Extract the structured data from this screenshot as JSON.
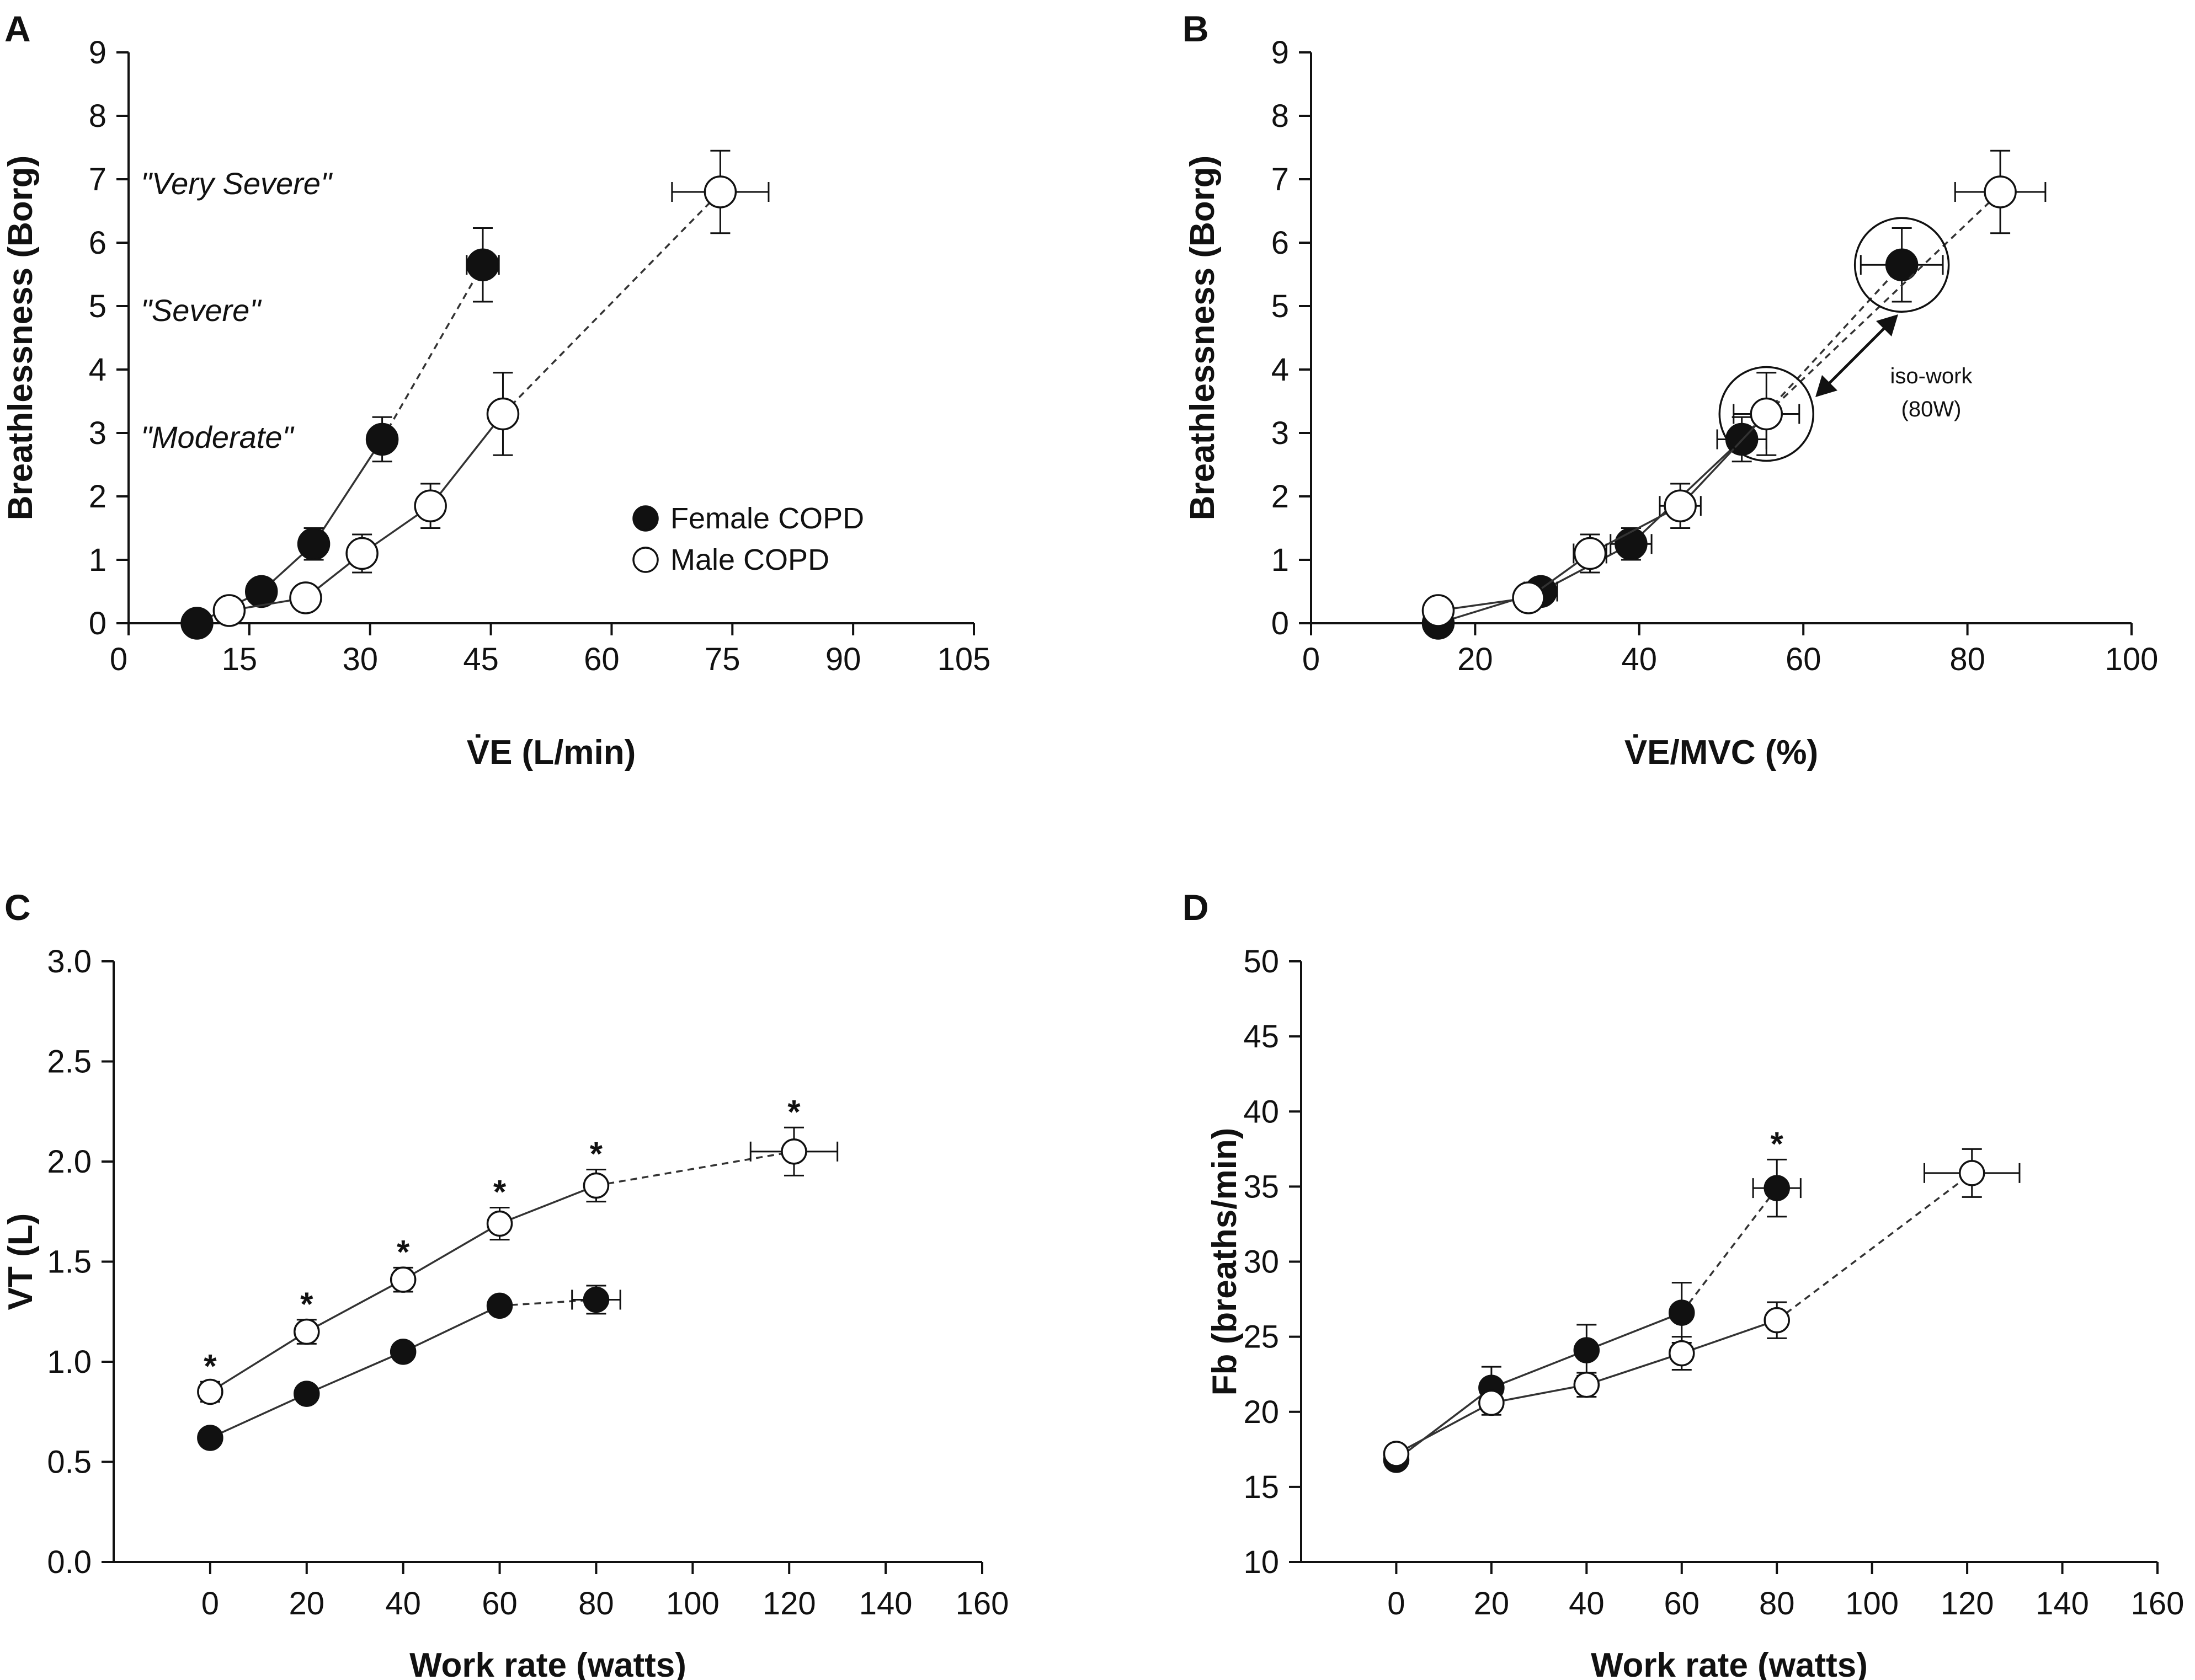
{
  "colors": {
    "ink": "#111111",
    "filled": "#111111",
    "open": "#ffffff",
    "line": "#333333"
  },
  "legend": {
    "female": "Female COPD",
    "male": "Male COPD"
  },
  "chart_data": [
    {
      "id": "A",
      "letter": "A",
      "type": "scatter",
      "xlabel": "V̇E (L/min)",
      "ylabel": "Breathlessness (Borg)",
      "xlim": [
        0,
        105
      ],
      "ylim": [
        0,
        9
      ],
      "xticks": [
        0,
        15,
        30,
        45,
        60,
        75,
        90,
        105
      ],
      "yticks": [
        0,
        1,
        2,
        3,
        4,
        5,
        6,
        7,
        8,
        9
      ],
      "annotations": [
        "\"Very Severe\"",
        "\"Severe\"",
        "\"Moderate\""
      ],
      "series": [
        {
          "name": "Female COPD",
          "marker": "filled",
          "x": [
            8.5,
            16.5,
            23,
            31.5,
            44
          ],
          "y": [
            0,
            0.5,
            1.25,
            2.9,
            5.65
          ],
          "xerr": [
            0,
            0,
            0,
            0,
            2
          ],
          "yerr": [
            0,
            0,
            0.25,
            0.35,
            0.58
          ],
          "dashed_last": true
        },
        {
          "name": "Male COPD",
          "marker": "open",
          "x": [
            12.5,
            22,
            29,
            37.5,
            46.5,
            73.5
          ],
          "y": [
            0.2,
            0.4,
            1.1,
            1.85,
            3.3,
            6.8
          ],
          "xerr": [
            0,
            0,
            0,
            0,
            0,
            6
          ],
          "yerr": [
            0,
            0,
            0.3,
            0.35,
            0.65,
            0.65
          ],
          "dashed_last": true
        }
      ]
    },
    {
      "id": "B",
      "letter": "B",
      "type": "scatter",
      "xlabel": "V̇E/MVC (%)",
      "ylabel": "Breathlessness (Borg)",
      "xlim": [
        0,
        100
      ],
      "ylim": [
        0,
        9
      ],
      "xticks": [
        0,
        20,
        40,
        60,
        80,
        100
      ],
      "yticks": [
        0,
        1,
        2,
        3,
        4,
        5,
        6,
        7,
        8,
        9
      ],
      "annotation_lines": [
        "iso-work",
        "(80W)"
      ],
      "series": [
        {
          "name": "Female COPD",
          "marker": "filled",
          "x": [
            15.5,
            28,
            39,
            52.5,
            72
          ],
          "y": [
            0,
            0.5,
            1.25,
            2.9,
            5.65
          ],
          "xerr": [
            0,
            2,
            2.5,
            3,
            5
          ],
          "yerr": [
            0,
            0,
            0.25,
            0.35,
            0.58
          ],
          "dashed_last": true
        },
        {
          "name": "Male COPD",
          "marker": "open",
          "x": [
            15.5,
            26.5,
            34,
            45,
            55.5,
            84
          ],
          "y": [
            0.2,
            0.4,
            1.1,
            1.85,
            3.3,
            6.8
          ],
          "xerr": [
            0,
            0,
            2,
            2.5,
            4,
            5.5
          ],
          "yerr": [
            0,
            0,
            0.3,
            0.35,
            0.65,
            0.65
          ],
          "dashed_last": true
        }
      ]
    },
    {
      "id": "C",
      "letter": "C",
      "type": "scatter",
      "xlabel": "Work rate (watts)",
      "ylabel": "VT (L)",
      "xlim": [
        -20,
        160
      ],
      "ylim": [
        0,
        3
      ],
      "xticks": [
        0,
        20,
        40,
        60,
        80,
        100,
        120,
        140,
        160
      ],
      "yticks": [
        0.0,
        0.5,
        1.0,
        1.5,
        2.0,
        2.5,
        3.0
      ],
      "ytick_labels": [
        "0.0",
        "0.5",
        "1.0",
        "1.5",
        "2.0",
        "2.5",
        "3.0"
      ],
      "significance_x": [
        0,
        20,
        40,
        60,
        80,
        121
      ],
      "significance_mark": "*",
      "series": [
        {
          "name": "Female COPD",
          "marker": "filled",
          "x": [
            0,
            20,
            40,
            60,
            80
          ],
          "y": [
            0.62,
            0.84,
            1.05,
            1.28,
            1.31
          ],
          "xerr": [
            0,
            0,
            0,
            0,
            5
          ],
          "yerr": [
            0,
            0,
            0.04,
            0.04,
            0.07
          ],
          "dashed_last": true
        },
        {
          "name": "Male COPD",
          "marker": "open",
          "x": [
            0,
            20,
            40,
            60,
            80,
            121
          ],
          "y": [
            0.85,
            1.15,
            1.41,
            1.69,
            1.88,
            2.05
          ],
          "xerr": [
            0,
            0,
            0,
            0,
            0,
            9
          ],
          "yerr": [
            0.05,
            0.06,
            0.06,
            0.08,
            0.08,
            0.12
          ],
          "dashed_last": true
        }
      ]
    },
    {
      "id": "D",
      "letter": "D",
      "type": "scatter",
      "xlabel": "Work rate (watts)",
      "ylabel": "Fb (breaths/min)",
      "xlim": [
        -20,
        160
      ],
      "ylim": [
        10,
        50
      ],
      "xticks": [
        0,
        20,
        40,
        60,
        80,
        100,
        120,
        140,
        160
      ],
      "yticks": [
        10,
        15,
        20,
        25,
        30,
        35,
        40,
        45,
        50
      ],
      "significance_x": [
        80
      ],
      "significance_mark": "*",
      "series": [
        {
          "name": "Female COPD",
          "marker": "filled",
          "x": [
            0,
            20,
            40,
            60,
            80
          ],
          "y": [
            16.8,
            21.6,
            24.1,
            26.6,
            34.9
          ],
          "xerr": [
            0,
            0,
            0,
            0,
            5
          ],
          "yerr": [
            0,
            1.4,
            1.7,
            2.0,
            1.9
          ],
          "dashed_last": true
        },
        {
          "name": "Male COPD",
          "marker": "open",
          "x": [
            0,
            20,
            40,
            60,
            80,
            121
          ],
          "y": [
            17.2,
            20.6,
            21.8,
            23.9,
            26.1,
            35.9
          ],
          "xerr": [
            0,
            0,
            0,
            0,
            0,
            10
          ],
          "yerr": [
            0,
            0.8,
            0.8,
            1.1,
            1.2,
            1.6
          ],
          "dashed_last": true
        }
      ]
    }
  ]
}
